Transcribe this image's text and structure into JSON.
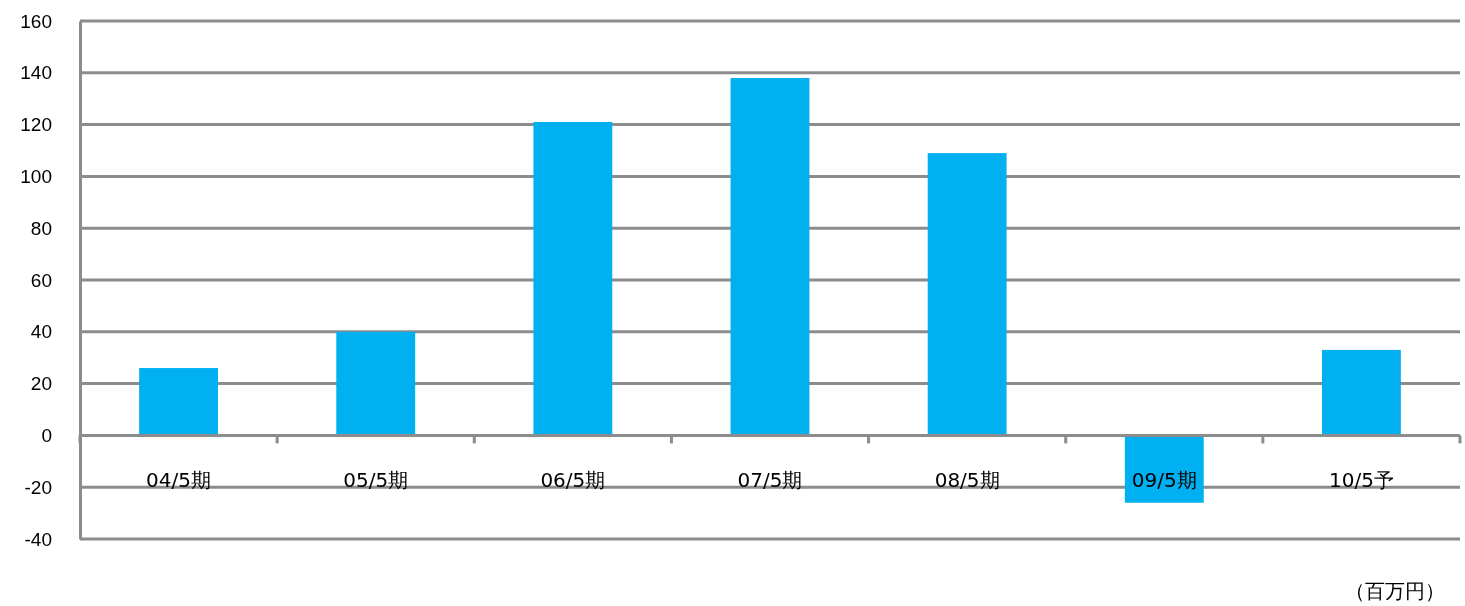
{
  "chart_data": {
    "type": "bar",
    "categories": [
      "04/5期",
      "05/5期",
      "06/5期",
      "07/5期",
      "08/5期",
      "09/5期",
      "10/5予"
    ],
    "values": [
      26,
      40,
      121,
      138,
      109,
      -26,
      33
    ],
    "color": "#00b0f0",
    "ylim": [
      -40,
      160
    ],
    "yticks": [
      -40,
      -20,
      0,
      20,
      40,
      60,
      80,
      100,
      120,
      140,
      160
    ],
    "grid": "y",
    "annotations": [
      "（百万円）"
    ]
  }
}
